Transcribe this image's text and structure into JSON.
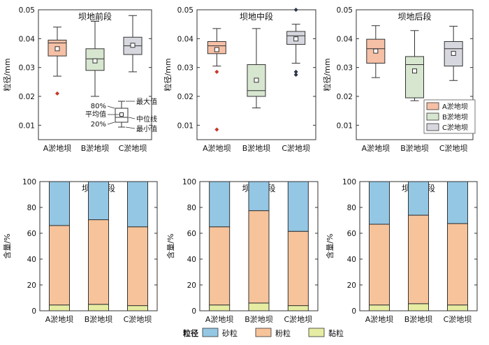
{
  "box_ylabel": "粒径/mm",
  "bar_ylabel": "含量/%",
  "categories": [
    "A淤地坝",
    "B淤地坝",
    "C淤地坝"
  ],
  "box_colors": [
    "#f6c0a6",
    "#d7e6cf",
    "#d7d8df"
  ],
  "bar_colors": {
    "clay": "#e6eca2",
    "silt": "#f7c39a",
    "sand": "#93c7e4"
  },
  "box_legend": [
    "A淤地坝",
    "B淤地坝",
    "C淤地坝"
  ],
  "box_key": {
    "max": "最大值",
    "mean": "平均值",
    "median": "中位线",
    "p80": "80%",
    "p20": "20%",
    "min": "最小值"
  },
  "bar_legend": {
    "title": "粒径",
    "items": [
      "砂粒",
      "粉粒",
      "黏粒"
    ]
  },
  "chart_data": [
    {
      "type": "box",
      "title": "坝地前段",
      "ylim": [
        0.005,
        0.05
      ],
      "yticks": [
        0.01,
        0.02,
        0.03,
        0.04,
        0.05
      ],
      "boxes": [
        {
          "min": 0.027,
          "q1": 0.034,
          "median": 0.0385,
          "q3": 0.0395,
          "max": 0.044,
          "mean": 0.0365,
          "outliers": [
            0.021
          ]
        },
        {
          "min": 0.02,
          "q1": 0.029,
          "median": 0.033,
          "q3": 0.0365,
          "max": 0.046,
          "mean": 0.0323,
          "outliers": []
        },
        {
          "min": 0.0285,
          "q1": 0.0345,
          "median": 0.0375,
          "q3": 0.0405,
          "max": 0.048,
          "mean": 0.0377,
          "outliers": []
        }
      ]
    },
    {
      "type": "box",
      "title": "坝地中段",
      "ylim": [
        0.005,
        0.05
      ],
      "yticks": [
        0.01,
        0.02,
        0.03,
        0.04,
        0.05
      ],
      "boxes": [
        {
          "min": 0.0305,
          "q1": 0.0348,
          "median": 0.0375,
          "q3": 0.039,
          "max": 0.0435,
          "mean": 0.0362,
          "outliers": [
            0.0285,
            0.0085
          ]
        },
        {
          "min": 0.016,
          "q1": 0.02,
          "median": 0.022,
          "q3": 0.031,
          "max": 0.0435,
          "mean": 0.0256,
          "outliers": []
        },
        {
          "min": 0.0315,
          "q1": 0.038,
          "median": 0.041,
          "q3": 0.0425,
          "max": 0.045,
          "mean": 0.0399,
          "outliers": [
            0.05,
            0.0285,
            0.0275
          ]
        }
      ]
    },
    {
      "type": "box",
      "title": "坝地后段",
      "ylim": [
        0.005,
        0.05
      ],
      "yticks": [
        0.01,
        0.02,
        0.03,
        0.04,
        0.05
      ],
      "boxes": [
        {
          "min": 0.0265,
          "q1": 0.0315,
          "median": 0.0365,
          "q3": 0.0398,
          "max": 0.0445,
          "mean": 0.0357,
          "outliers": []
        },
        {
          "min": 0.0185,
          "q1": 0.0195,
          "median": 0.031,
          "q3": 0.0338,
          "max": 0.0428,
          "mean": 0.0288,
          "outliers": []
        },
        {
          "min": 0.0255,
          "q1": 0.0305,
          "median": 0.0365,
          "q3": 0.039,
          "max": 0.0443,
          "mean": 0.0349,
          "outliers": []
        }
      ]
    },
    {
      "type": "bar",
      "stacked": true,
      "title": "坝地前段",
      "ylim": [
        0,
        100
      ],
      "yticks": [
        0,
        20,
        40,
        60,
        80,
        100
      ],
      "series": [
        {
          "name": "黏粒",
          "values": [
            4.5,
            5.0,
            4.0
          ]
        },
        {
          "name": "粉粒",
          "values": [
            61.5,
            65.5,
            61.0
          ]
        },
        {
          "name": "砂粒",
          "values": [
            34.0,
            29.5,
            35.0
          ]
        }
      ]
    },
    {
      "type": "bar",
      "stacked": true,
      "title": "坝地中段",
      "ylim": [
        0,
        100
      ],
      "yticks": [
        0,
        20,
        40,
        60,
        80,
        100
      ],
      "series": [
        {
          "name": "黏粒",
          "values": [
            4.5,
            6.0,
            4.0
          ]
        },
        {
          "name": "粉粒",
          "values": [
            60.5,
            71.5,
            57.5
          ]
        },
        {
          "name": "砂粒",
          "values": [
            35.0,
            22.5,
            38.5
          ]
        }
      ]
    },
    {
      "type": "bar",
      "stacked": true,
      "title": "坝地后段",
      "ylim": [
        0,
        100
      ],
      "yticks": [
        0,
        20,
        40,
        60,
        80,
        100
      ],
      "series": [
        {
          "name": "黏粒",
          "values": [
            4.5,
            5.5,
            4.5
          ]
        },
        {
          "name": "粉粒",
          "values": [
            62.5,
            68.5,
            63.0
          ]
        },
        {
          "name": "砂粒",
          "values": [
            33.0,
            26.0,
            32.5
          ]
        }
      ]
    }
  ]
}
